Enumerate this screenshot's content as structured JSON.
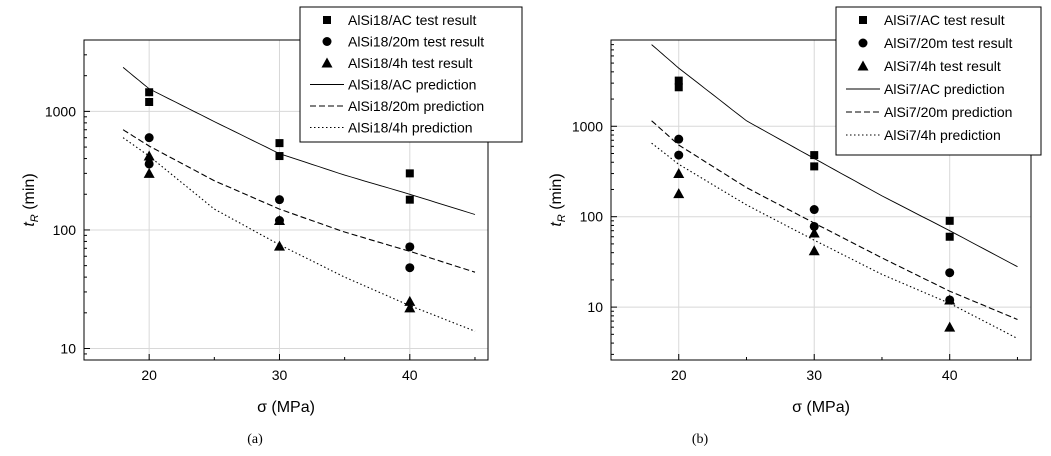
{
  "chart_data": [
    {
      "type": "scatter",
      "panel": "(a)",
      "xlabel": "σ (MPa)",
      "ylabel_main": "t",
      "ylabel_sub": "R",
      "ylabel_unit": " (min)",
      "x_scale": "linear",
      "y_scale": "log",
      "xlim": [
        15,
        46
      ],
      "ylim": [
        8,
        4000
      ],
      "x_ticks": [
        20,
        30,
        40
      ],
      "y_ticks": [
        10,
        100,
        1000
      ],
      "y_tick_labels": [
        "10",
        "100",
        "1000"
      ],
      "grid": true,
      "legend_position": "top-right",
      "series": [
        {
          "name": "AlSi18/AC test result",
          "kind": "points",
          "marker": "square",
          "x": [
            20,
            20,
            30,
            30,
            40,
            40
          ],
          "y": [
            1450,
            1200,
            540,
            420,
            300,
            180
          ]
        },
        {
          "name": "AlSi18/20m test result",
          "kind": "points",
          "marker": "circle",
          "x": [
            20,
            20,
            30,
            30,
            40,
            40
          ],
          "y": [
            600,
            360,
            180,
            120,
            72,
            48
          ]
        },
        {
          "name": "AlSi18/4h test result",
          "kind": "points",
          "marker": "triangle",
          "x": [
            20,
            20,
            30,
            30,
            40,
            40
          ],
          "y": [
            420,
            300,
            120,
            73,
            25,
            22
          ]
        },
        {
          "name": "AlSi18/AC prediction",
          "kind": "line",
          "dash": "solid",
          "x": [
            18,
            20,
            25,
            30,
            35,
            40,
            45
          ],
          "y": [
            2350,
            1550,
            820,
            440,
            290,
            200,
            135
          ]
        },
        {
          "name": "AlSi18/20m prediction",
          "kind": "line",
          "dash": "dashed",
          "x": [
            18,
            20,
            25,
            30,
            35,
            40,
            45
          ],
          "y": [
            700,
            510,
            260,
            150,
            96,
            66,
            44
          ]
        },
        {
          "name": "AlSi18/4h prediction",
          "kind": "line",
          "dash": "dotted",
          "x": [
            18,
            20,
            25,
            30,
            35,
            40,
            45
          ],
          "y": [
            600,
            420,
            150,
            75,
            40,
            23,
            14
          ]
        }
      ]
    },
    {
      "type": "scatter",
      "panel": "(b)",
      "xlabel": "σ (MPa)",
      "ylabel_main": "t",
      "ylabel_sub": "R",
      "ylabel_unit": " (min)",
      "x_scale": "linear",
      "y_scale": "log",
      "xlim": [
        15,
        46
      ],
      "ylim": [
        2.6,
        9000
      ],
      "x_ticks": [
        20,
        30,
        40
      ],
      "y_ticks": [
        10,
        100,
        1000
      ],
      "y_tick_labels": [
        "10",
        "100",
        "1000"
      ],
      "grid": true,
      "legend_position": "top-right",
      "series": [
        {
          "name": "AlSi7/AC test result",
          "kind": "points",
          "marker": "square",
          "x": [
            20,
            20,
            30,
            30,
            40,
            40
          ],
          "y": [
            3200,
            2700,
            480,
            360,
            90,
            60
          ]
        },
        {
          "name": "AlSi7/20m test result",
          "kind": "points",
          "marker": "circle",
          "x": [
            20,
            20,
            30,
            30,
            40,
            40
          ],
          "y": [
            720,
            480,
            120,
            78,
            24,
            12
          ]
        },
        {
          "name": "AlSi7/4h test result",
          "kind": "points",
          "marker": "triangle",
          "x": [
            20,
            20,
            30,
            30,
            40,
            40
          ],
          "y": [
            300,
            180,
            66,
            42,
            12,
            6
          ]
        },
        {
          "name": "AlSi7/AC prediction",
          "kind": "line",
          "dash": "solid",
          "x": [
            18,
            20,
            25,
            30,
            35,
            40,
            45
          ],
          "y": [
            8000,
            4400,
            1150,
            440,
            170,
            70,
            28
          ]
        },
        {
          "name": "AlSi7/20m prediction",
          "kind": "line",
          "dash": "dashed",
          "x": [
            18,
            20,
            25,
            30,
            35,
            40,
            45
          ],
          "y": [
            1150,
            620,
            210,
            85,
            35,
            15,
            7.3
          ]
        },
        {
          "name": "AlSi7/4h prediction",
          "kind": "line",
          "dash": "dotted",
          "x": [
            18,
            20,
            25,
            30,
            35,
            40,
            45
          ],
          "y": [
            650,
            380,
            135,
            55,
            23,
            11,
            4.5
          ]
        }
      ]
    }
  ]
}
